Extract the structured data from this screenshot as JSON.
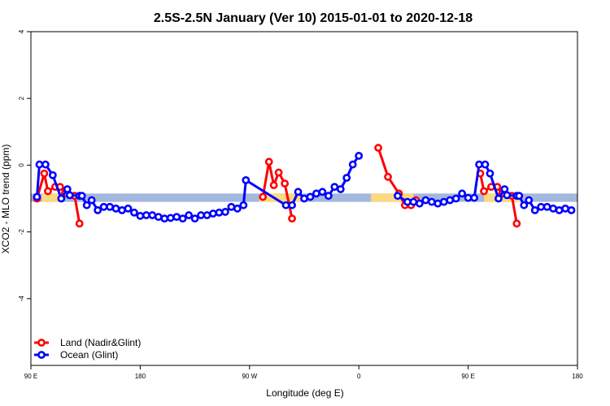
{
  "chart_data": {
    "type": "line",
    "title": "2.5S-2.5N January (Ver 10)   2015-01-01 to 2020-12-18",
    "xlabel": "Longitude (deg E)",
    "ylabel": "XCO2 - MLO trend (ppm)",
    "x_ticks": [
      {
        "value": 90,
        "label": "90 E"
      },
      {
        "value": 180,
        "label": "180"
      },
      {
        "value": 270,
        "label": "90 W"
      },
      {
        "value": 360,
        "label": "0"
      },
      {
        "value": 450,
        "label": "90 E"
      },
      {
        "value": 540,
        "label": "180"
      }
    ],
    "y_ticks": [
      4,
      2,
      0,
      -2,
      -4
    ],
    "xlim": [
      90,
      540
    ],
    "ylim": [
      -6,
      4
    ],
    "grid": false,
    "legend_position": "bottom-left",
    "colors": {
      "land": "#ff0000",
      "ocean": "#0000ff",
      "ocean_band": "#a3b8dc",
      "land_band": "#fbd980"
    },
    "reference_band": {
      "y_low": -1.1,
      "y_high": -0.85,
      "land_segments": [
        [
          99,
          113
        ],
        [
          278,
          312
        ],
        [
          370,
          405
        ],
        [
          463,
          493
        ]
      ]
    },
    "series": [
      {
        "name": "Land (Nadir&Glint)",
        "color": "#ff0000",
        "points": [
          [
            95,
            -1.0
          ],
          [
            101,
            -0.25
          ],
          [
            104,
            -0.78
          ],
          [
            110,
            -0.65
          ],
          [
            114,
            -0.65
          ],
          [
            118,
            -0.85
          ],
          [
            126,
            -0.92
          ],
          [
            130,
            -1.75
          ],
          null,
          [
            281,
            -0.95
          ],
          [
            286,
            0.1
          ],
          [
            290,
            -0.6
          ],
          [
            294,
            -0.22
          ],
          [
            299,
            -0.55
          ],
          [
            305,
            -1.6
          ],
          null,
          [
            376,
            0.52
          ],
          [
            384,
            -0.35
          ],
          [
            393,
            -0.85
          ],
          [
            398,
            -1.2
          ],
          [
            403,
            -1.2
          ],
          [
            407,
            -1.05
          ],
          null,
          [
            460,
            -0.25
          ],
          [
            463,
            -0.78
          ],
          [
            469,
            -0.65
          ],
          [
            474,
            -0.65
          ],
          [
            478,
            -0.85
          ],
          [
            486,
            -0.92
          ],
          [
            490,
            -1.75
          ]
        ]
      },
      {
        "name": "Ocean (Glint)",
        "color": "#0000ff",
        "points": [
          [
            95,
            -0.95
          ],
          [
            97,
            0.02
          ],
          [
            102,
            0.02
          ],
          [
            108,
            -0.3
          ],
          [
            115,
            -1.0
          ],
          [
            120,
            -0.72
          ],
          [
            122,
            -0.9
          ],
          [
            130,
            -0.92
          ],
          [
            132,
            -0.92
          ],
          [
            136,
            -1.2
          ],
          [
            140,
            -1.05
          ],
          [
            145,
            -1.35
          ],
          [
            150,
            -1.25
          ],
          [
            155,
            -1.25
          ],
          [
            160,
            -1.3
          ],
          [
            165,
            -1.35
          ],
          [
            170,
            -1.3
          ],
          [
            175,
            -1.42
          ],
          [
            180,
            -1.52
          ],
          [
            185,
            -1.5
          ],
          [
            190,
            -1.5
          ],
          [
            195,
            -1.55
          ],
          [
            200,
            -1.6
          ],
          [
            205,
            -1.58
          ],
          [
            210,
            -1.55
          ],
          [
            215,
            -1.6
          ],
          [
            220,
            -1.5
          ],
          [
            225,
            -1.6
          ],
          [
            230,
            -1.5
          ],
          [
            235,
            -1.5
          ],
          [
            240,
            -1.45
          ],
          [
            245,
            -1.42
          ],
          [
            250,
            -1.4
          ],
          [
            255,
            -1.25
          ],
          [
            260,
            -1.3
          ],
          [
            265,
            -1.2
          ],
          [
            267,
            -0.45
          ],
          [
            300,
            -1.2
          ],
          [
            305,
            -1.2
          ],
          [
            310,
            -0.8
          ],
          [
            315,
            -1.0
          ],
          [
            320,
            -0.95
          ],
          [
            325,
            -0.85
          ],
          [
            330,
            -0.8
          ],
          [
            335,
            -0.92
          ],
          [
            340,
            -0.65
          ],
          [
            345,
            -0.72
          ],
          [
            350,
            -0.38
          ],
          [
            355,
            0.02
          ],
          [
            360,
            0.28
          ],
          null,
          [
            392,
            -0.92
          ],
          [
            400,
            -1.1
          ],
          [
            405,
            -1.1
          ],
          [
            410,
            -1.15
          ],
          [
            415,
            -1.05
          ],
          [
            420,
            -1.1
          ],
          [
            425,
            -1.15
          ],
          [
            430,
            -1.1
          ],
          [
            435,
            -1.05
          ],
          [
            440,
            -1.0
          ],
          [
            445,
            -0.85
          ],
          [
            450,
            -0.98
          ],
          [
            455,
            -0.98
          ],
          [
            459,
            0.02
          ],
          [
            464,
            0.02
          ],
          [
            468,
            -0.25
          ],
          [
            475,
            -1.0
          ],
          [
            480,
            -0.72
          ],
          [
            482,
            -0.9
          ],
          [
            490,
            -0.92
          ],
          [
            492,
            -0.92
          ],
          [
            496,
            -1.2
          ],
          [
            500,
            -1.05
          ],
          [
            505,
            -1.35
          ],
          [
            510,
            -1.25
          ],
          [
            515,
            -1.25
          ],
          [
            520,
            -1.3
          ],
          [
            525,
            -1.35
          ],
          [
            530,
            -1.3
          ],
          [
            535,
            -1.35
          ]
        ]
      }
    ]
  }
}
